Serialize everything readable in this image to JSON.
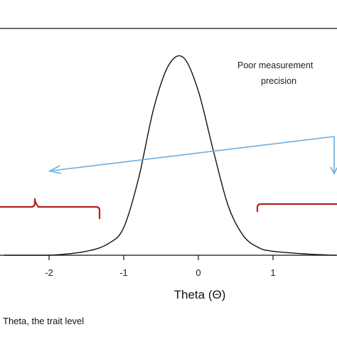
{
  "chart_data": {
    "type": "line",
    "title": "",
    "xlabel": "Theta (Θ)",
    "ylabel": "",
    "xlim": [
      -2.6,
      1.85
    ],
    "ylim": [
      0,
      1
    ],
    "xticks": [
      -2,
      -1,
      0,
      1
    ],
    "xtick_labels": [
      "-2",
      "-1",
      "0",
      "1"
    ],
    "grid": false,
    "series": [
      {
        "x": [
          -2.6,
          -2.0,
          -1.5,
          -1.2,
          -1.0,
          -0.8,
          -0.6,
          -0.4,
          -0.2,
          0.0,
          0.2,
          0.4,
          0.6,
          0.8,
          1.0,
          1.5,
          1.85
        ],
        "values": [
          0.0,
          0.0,
          0.02,
          0.06,
          0.14,
          0.39,
          0.74,
          0.96,
          1.0,
          0.83,
          0.53,
          0.25,
          0.1,
          0.04,
          0.02,
          0.005,
          0.0
        ]
      }
    ],
    "annotations": {
      "poor_precision_line1": "Poor measurement",
      "poor_precision_line2": "precision"
    },
    "colors": {
      "curve": "#111111",
      "arrow": "#6aaee0",
      "bracket": "#b0251c",
      "axis": "#111111"
    }
  },
  "caption": "Theta, the trait level"
}
